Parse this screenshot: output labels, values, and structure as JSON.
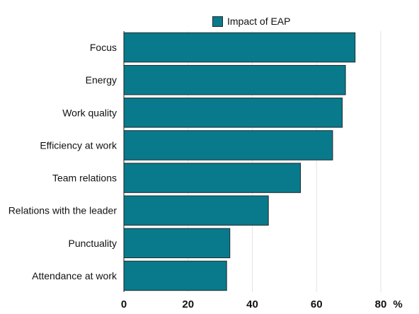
{
  "chart_data": {
    "type": "bar",
    "orientation": "horizontal",
    "categories": [
      "Focus",
      "Energy",
      "Work quality",
      "Efficiency at work",
      "Team relations",
      "Relations with the leader",
      "Punctuality",
      "Attendance at work"
    ],
    "series": [
      {
        "name": "Impact of EAP",
        "values": [
          72,
          69,
          68,
          65,
          55,
          45,
          33,
          32
        ]
      }
    ],
    "xlim": [
      0,
      80
    ],
    "xticks": [
      0,
      20,
      40,
      60,
      80
    ],
    "xunit": "%",
    "grid": true,
    "legend": "top",
    "bar_color": "#087a8c"
  }
}
